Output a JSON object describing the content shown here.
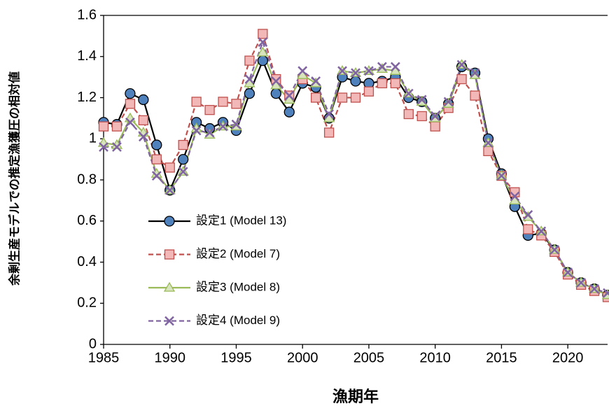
{
  "chart_data": {
    "type": "line",
    "x_label": "漁期年",
    "y_label": "余剰生産モデルでの推定漁獲圧の相対値",
    "x": [
      1985,
      1986,
      1987,
      1988,
      1989,
      1990,
      1991,
      1992,
      1993,
      1994,
      1995,
      1996,
      1997,
      1998,
      1999,
      2000,
      2001,
      2002,
      2003,
      2004,
      2005,
      2006,
      2007,
      2008,
      2009,
      2010,
      2011,
      2012,
      2013,
      2014,
      2015,
      2016,
      2017,
      2018,
      2019,
      2020,
      2021,
      2022,
      2023
    ],
    "xlim": [
      1985,
      2023
    ],
    "xticks": [
      1985,
      1990,
      1995,
      2000,
      2005,
      2010,
      2015,
      2020
    ],
    "ylim": [
      0,
      1.6
    ],
    "yticks": [
      0,
      0.2,
      0.4,
      0.6,
      0.8,
      1,
      1.2,
      1.4,
      1.6
    ],
    "grid": false,
    "series": [
      {
        "name": "設定1 (Model 13)",
        "color": "#000000",
        "marker_color": "#4f81bd",
        "marker": "circle",
        "dashed": false,
        "values": [
          1.08,
          1.07,
          1.22,
          1.19,
          0.97,
          0.75,
          0.9,
          1.08,
          1.05,
          1.08,
          1.04,
          1.22,
          1.38,
          1.22,
          1.13,
          1.27,
          1.25,
          1.1,
          1.3,
          1.28,
          1.27,
          1.28,
          1.3,
          1.2,
          1.18,
          1.1,
          1.17,
          1.35,
          1.32,
          1.0,
          0.83,
          0.67,
          0.53,
          0.54,
          0.46,
          0.35,
          0.3,
          0.27,
          0.24
        ]
      },
      {
        "name": "設定2 (Model 7)",
        "color": "#c0504d",
        "marker_color": "#f2b8b8",
        "marker": "square",
        "dashed": true,
        "values": [
          1.06,
          1.06,
          1.17,
          1.09,
          0.9,
          0.86,
          0.97,
          1.18,
          1.14,
          1.18,
          1.17,
          1.38,
          1.51,
          1.29,
          1.21,
          1.29,
          1.2,
          1.03,
          1.2,
          1.2,
          1.23,
          1.27,
          1.27,
          1.12,
          1.11,
          1.06,
          1.15,
          1.29,
          1.21,
          0.94,
          0.82,
          0.74,
          0.56,
          0.53,
          0.45,
          0.34,
          0.29,
          0.26,
          0.23
        ]
      },
      {
        "name": "設定3 (Model 8)",
        "color": "#9bbb59",
        "marker_color": "#d7e4bd",
        "marker": "triangle",
        "dashed": false,
        "values": [
          0.98,
          0.97,
          1.1,
          1.03,
          0.83,
          0.75,
          0.84,
          1.05,
          1.02,
          1.06,
          1.06,
          1.27,
          1.42,
          1.26,
          1.19,
          1.31,
          1.27,
          1.1,
          1.33,
          1.32,
          1.33,
          1.34,
          1.33,
          1.22,
          1.18,
          1.1,
          1.17,
          1.36,
          1.31,
          0.98,
          0.82,
          0.7,
          0.62,
          0.55,
          0.46,
          0.35,
          0.3,
          0.27,
          0.24
        ]
      },
      {
        "name": "設定4 (Model 9)",
        "color": "#8064a2",
        "marker_color": "#8064a2",
        "marker": "x",
        "dashed": true,
        "values": [
          0.96,
          0.96,
          1.08,
          1.01,
          0.82,
          0.75,
          0.84,
          1.04,
          1.03,
          1.06,
          1.07,
          1.29,
          1.47,
          1.28,
          1.21,
          1.33,
          1.28,
          1.12,
          1.33,
          1.32,
          1.33,
          1.35,
          1.35,
          1.22,
          1.19,
          1.11,
          1.18,
          1.36,
          1.32,
          0.98,
          0.82,
          0.72,
          0.63,
          0.55,
          0.46,
          0.35,
          0.3,
          0.27,
          0.25
        ]
      }
    ]
  }
}
